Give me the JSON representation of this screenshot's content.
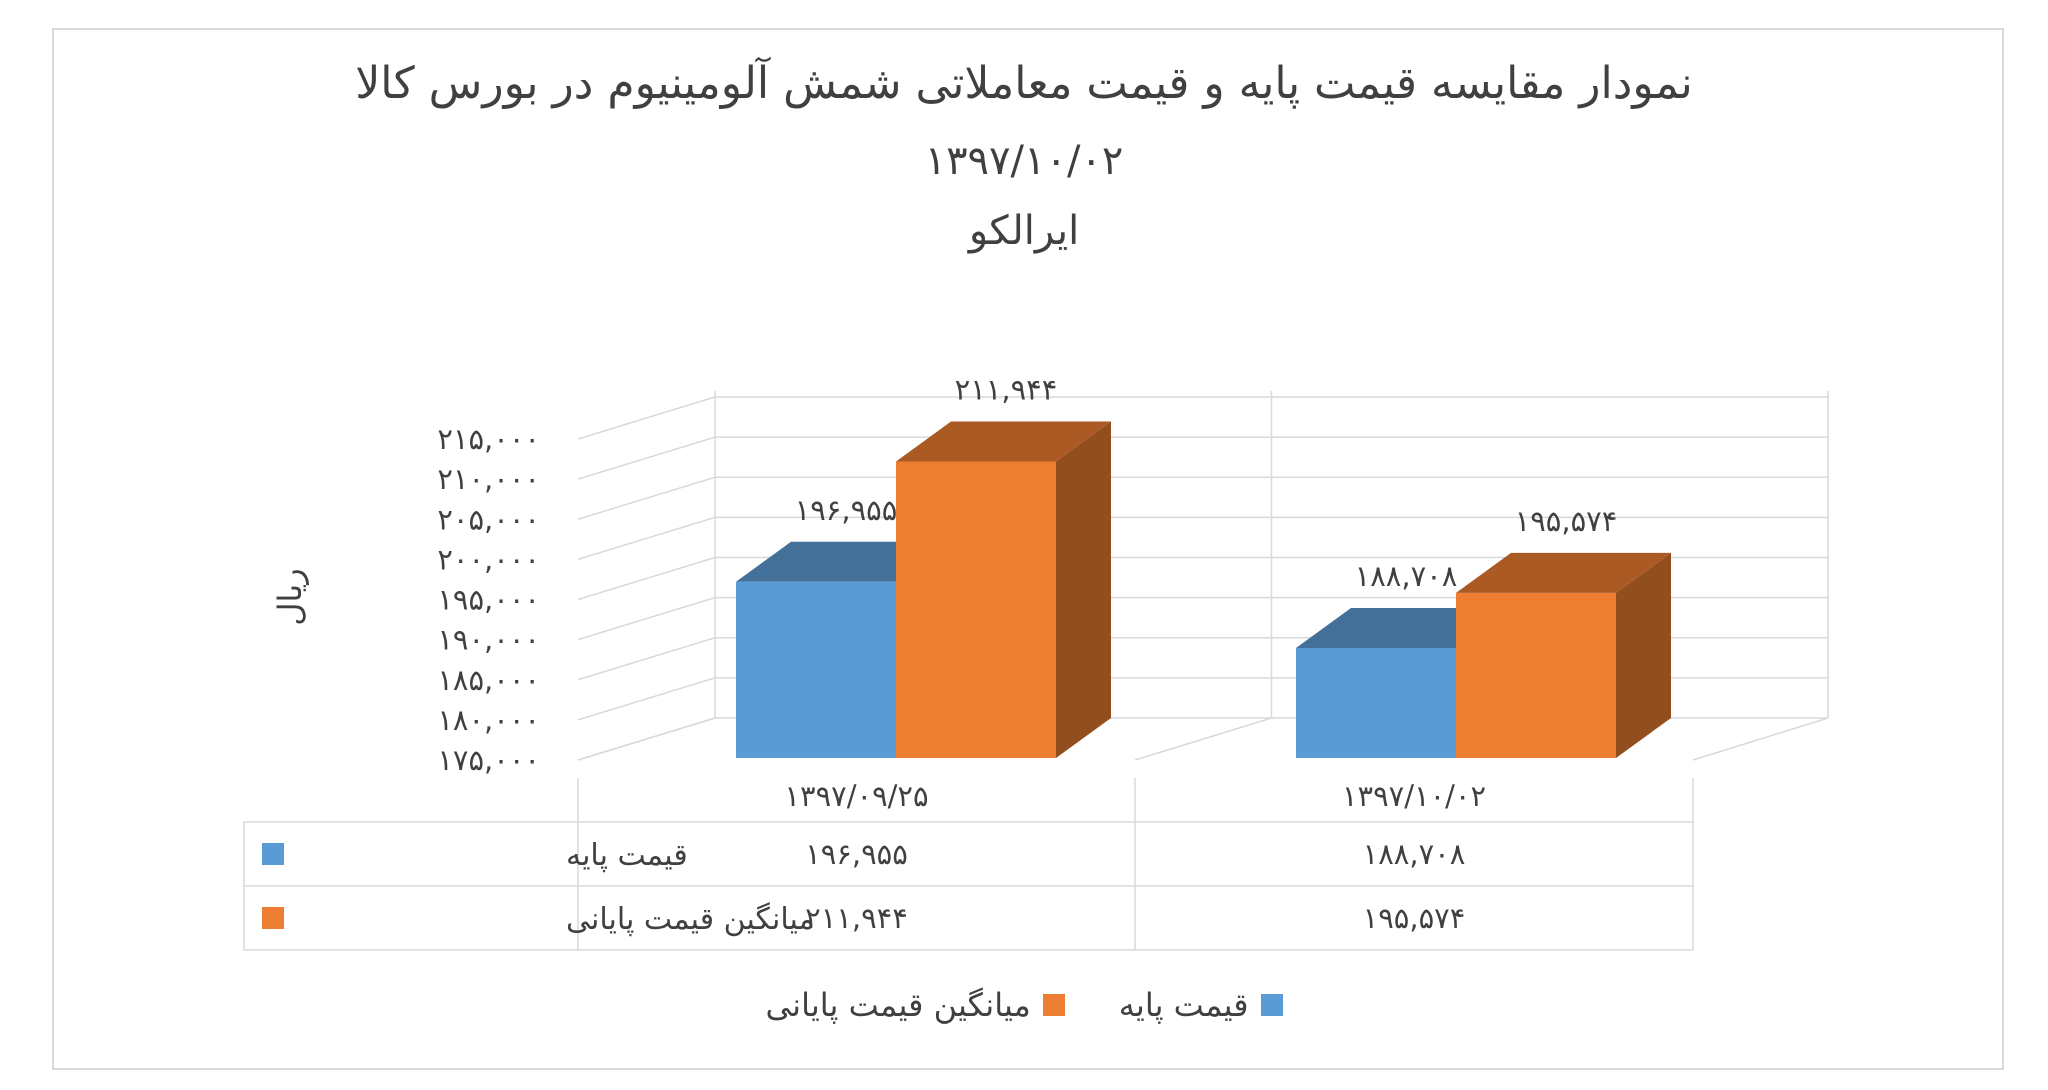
{
  "chart_data": {
    "type": "bar",
    "title": "نمودار مقایسه قیمت پایه و قیمت معاملاتی شمش آلومینیوم در بورس کالا",
    "subtitle_date": "۱۳۹۷/۱۰/۰۲",
    "subtitle_company": "ایرالکو",
    "ylabel": "ریال",
    "xlabel": "",
    "ylim": [
      175000,
      215000
    ],
    "yticks": [
      175000,
      180000,
      185000,
      190000,
      195000,
      200000,
      205000,
      210000,
      215000
    ],
    "ytick_labels": [
      "۱۷۵,۰۰۰",
      "۱۸۰,۰۰۰",
      "۱۸۵,۰۰۰",
      "۱۹۰,۰۰۰",
      "۱۹۵,۰۰۰",
      "۲۰۰,۰۰۰",
      "۲۰۵,۰۰۰",
      "۲۱۰,۰۰۰",
      "۲۱۵,۰۰۰"
    ],
    "categories": [
      "۱۳۹۷/۰۹/۲۵",
      "۱۳۹۷/۱۰/۰۲"
    ],
    "series": [
      {
        "name": "قیمت پایه",
        "color": "#5b9bd5",
        "values": [
          196955,
          188708
        ],
        "labels": [
          "۱۹۶,۹۵۵",
          "۱۸۸,۷۰۸"
        ]
      },
      {
        "name": "میانگین قیمت پایانی",
        "color": "#ed7d31",
        "values": [
          211944,
          195574
        ],
        "labels": [
          "۲۱۱,۹۴۴",
          "۱۹۵,۵۷۴"
        ]
      }
    ],
    "grid": true,
    "style": "3d-column",
    "data_table": true,
    "legend_position": "bottom"
  }
}
